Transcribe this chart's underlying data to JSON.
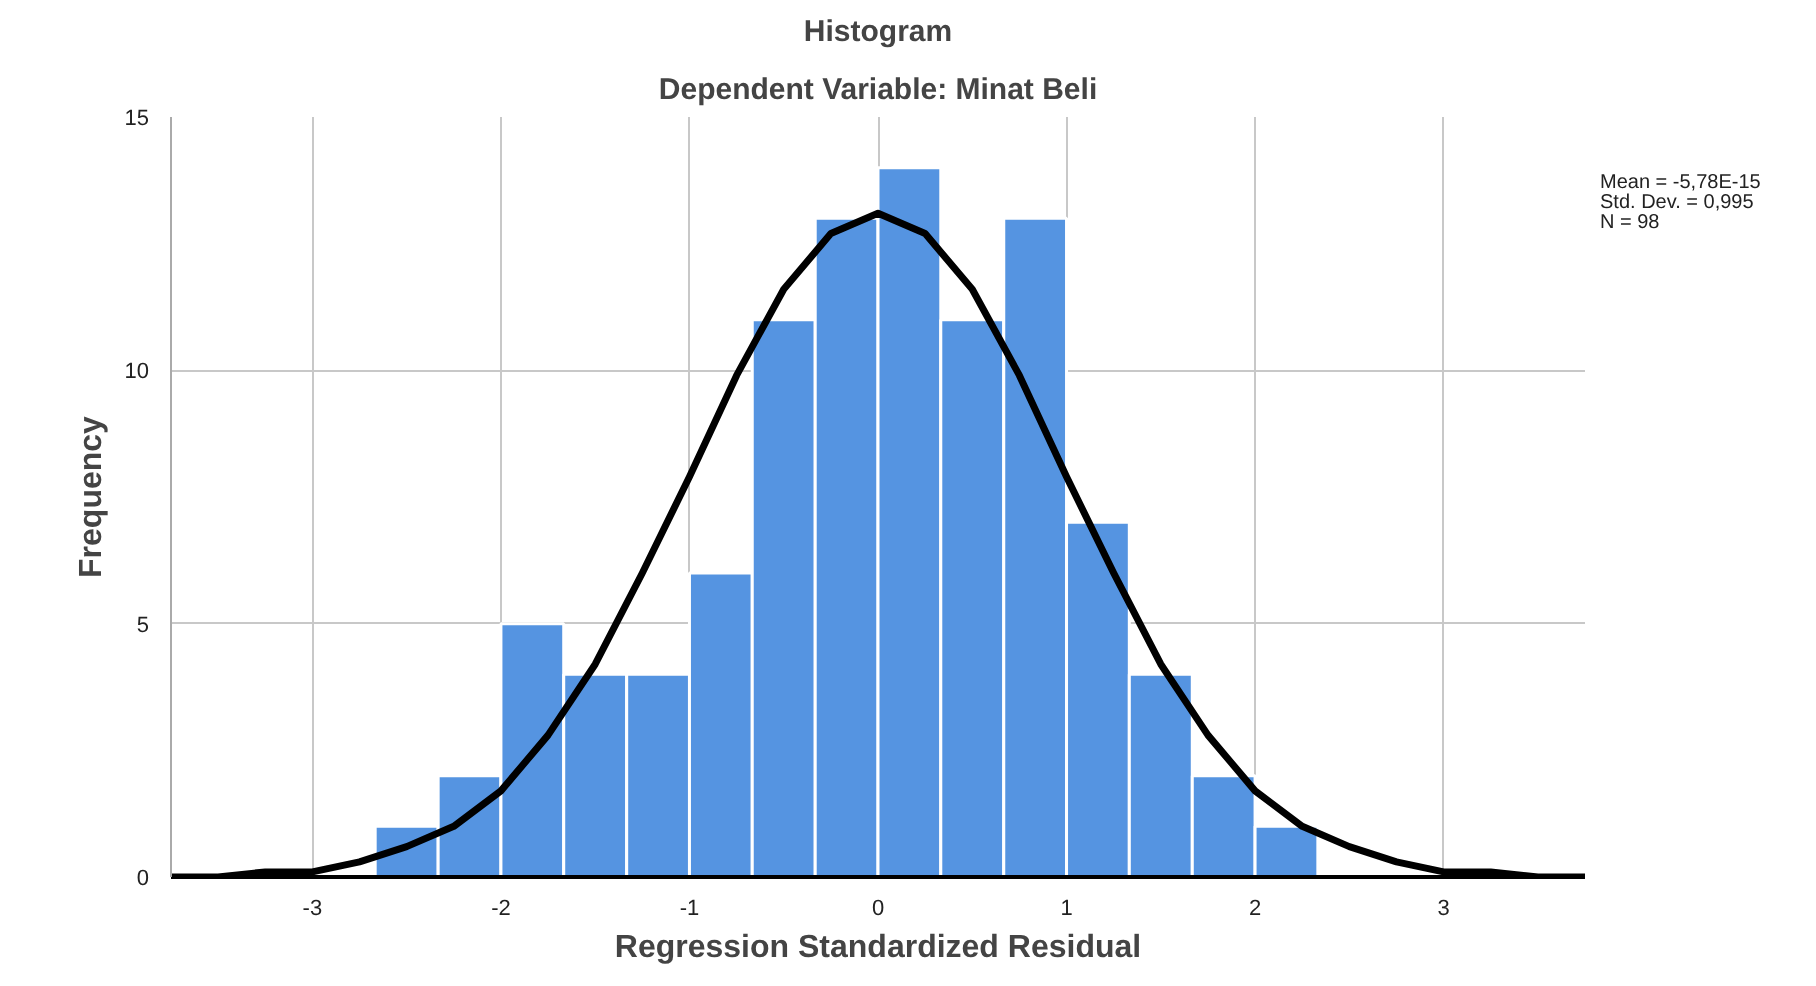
{
  "chart_data": {
    "type": "histogram",
    "title": "Histogram",
    "subtitle": "Dependent Variable: Minat Beli",
    "xlabel": "Regression Standardized Residual",
    "ylabel": "Frequency",
    "bins": [
      -2.667,
      -2.333,
      -2,
      -1.667,
      -1.333,
      -1,
      -0.667,
      -0.333,
      0,
      0.333,
      0.667,
      1,
      1.333,
      1.667,
      2,
      2.333
    ],
    "series": [
      {
        "color": "#5594e1",
        "values": [
          1,
          2,
          5,
          4,
          4,
          6,
          11,
          13,
          14,
          11,
          13,
          7,
          4,
          2,
          1
        ]
      },
      {
        "type": "line",
        "color": "#000000",
        "x": [
          -3.75,
          -3.5,
          -3.25,
          -3,
          -2.75,
          -2.5,
          -2.25,
          -2,
          -1.75,
          -1.5,
          -1.25,
          -1,
          -0.75,
          -0.5,
          -0.25,
          0,
          0.25,
          0.5,
          0.75,
          1,
          1.25,
          1.5,
          1.75,
          2,
          2.25,
          2.5,
          2.75,
          3,
          3.25,
          3.5,
          3.75
        ],
        "values": [
          0.0,
          0.0,
          0.1,
          0.1,
          0.3,
          0.6,
          1.0,
          1.7,
          2.8,
          4.2,
          6.0,
          7.9,
          9.9,
          11.6,
          12.7,
          13.1,
          12.7,
          11.6,
          9.9,
          7.9,
          6.0,
          4.2,
          2.8,
          1.7,
          1.0,
          0.6,
          0.3,
          0.1,
          0.1,
          0.0,
          0.0
        ]
      }
    ],
    "xlim": [
      -3.75,
      3.75
    ],
    "ylim": [
      0,
      15
    ],
    "xticks": [
      -3,
      -2,
      -1,
      0,
      1,
      2,
      3
    ],
    "yticks": [
      0,
      5,
      10,
      15
    ],
    "grid": true,
    "annotations": [
      "Mean = -5,78E-15",
      "Std. Dev. = 0,995",
      "N = 98"
    ]
  }
}
